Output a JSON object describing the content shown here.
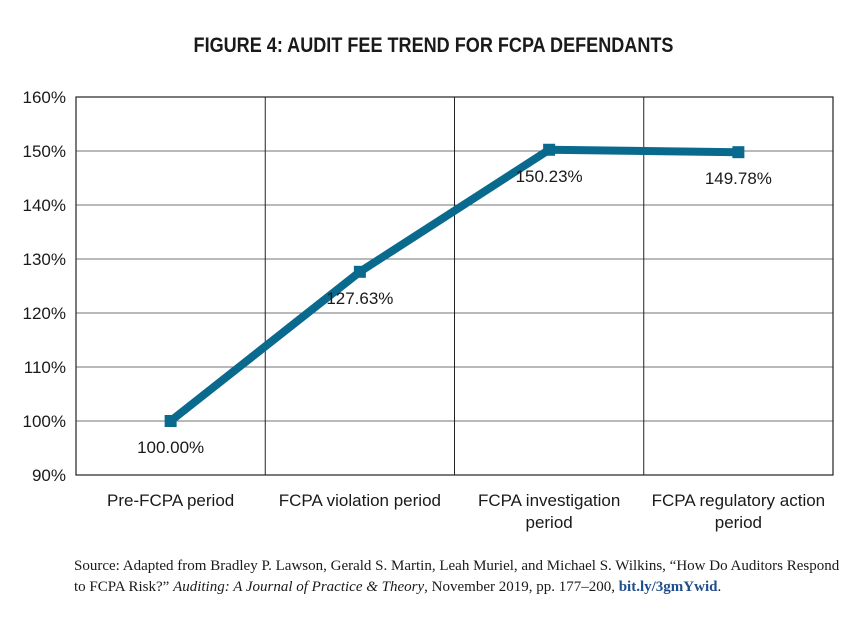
{
  "chart_data": {
    "type": "line",
    "title": "FIGURE 4: AUDIT FEE TREND FOR FCPA DEFENDANTS",
    "categories": [
      [
        "Pre-FCPA period"
      ],
      [
        "FCPA violation period"
      ],
      [
        "FCPA investigation",
        "period"
      ],
      [
        "FCPA regulatory action",
        "period"
      ]
    ],
    "series": [
      {
        "values": [
          100.0,
          127.63,
          150.23,
          149.78
        ]
      }
    ],
    "data_labels": [
      "100.00%",
      "127.63%",
      "150.23%",
      "149.78%"
    ],
    "yticks": [
      "90%",
      "100%",
      "110%",
      "120%",
      "130%",
      "140%",
      "150%",
      "160%"
    ],
    "ylim": [
      90,
      160
    ],
    "y_step": 10,
    "grid": true,
    "line_color": "#0a6a8e"
  },
  "source": {
    "prefix": "Source: Adapted from Bradley P. Lawson, Gerald S. Martin, Leah Muriel, and Michael S. Wilkins, “How Do Auditors Respond to FCPA Risk?” ",
    "journal": "Auditing: A Journal of Practice & Theory",
    "suffix": ", November 2019, pp. 177–200, ",
    "link": "bit.ly/3gmYwid",
    "end": "."
  }
}
